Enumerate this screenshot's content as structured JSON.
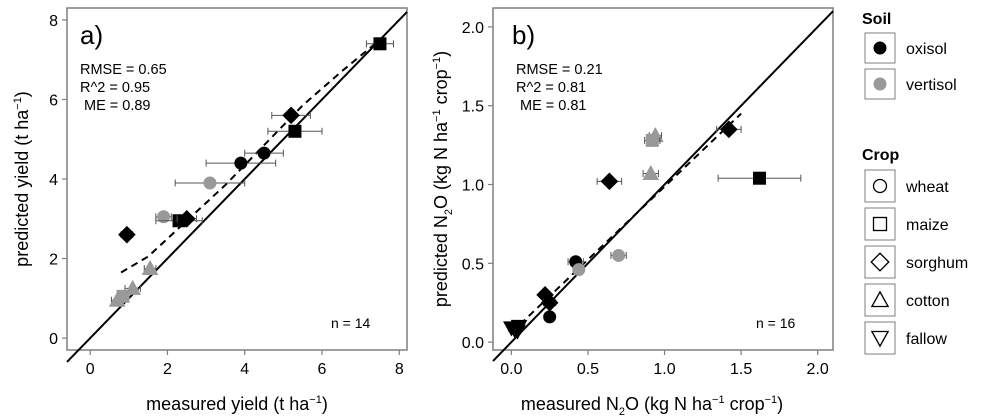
{
  "chart_data": [
    {
      "type": "scatter",
      "panel_label": "a)",
      "xlabel": {
        "main": "measured yield (t ha",
        "sup": "−1",
        "tail": ")"
      },
      "ylabel": {
        "main": "predicted yield (t ha",
        "sup": "−1",
        "tail": ")"
      },
      "xlim": [
        -0.6,
        8.2
      ],
      "ylim": [
        -0.3,
        8.3
      ],
      "xticks": [
        0,
        2,
        4,
        6,
        8
      ],
      "yticks": [
        0,
        2,
        4,
        6,
        8
      ],
      "xtick_labels": [
        "0",
        "2",
        "4",
        "6",
        "8"
      ],
      "ytick_labels": [
        "0",
        "2",
        "4",
        "6",
        "8"
      ],
      "stats": [
        "RMSE = 0.65",
        "R^2 = 0.95",
        "ME = 0.89"
      ],
      "n_label": "n = 14",
      "one_to_one": [
        [
          -0.6,
          -0.6
        ],
        [
          8.2,
          8.2
        ]
      ],
      "fit_line": [
        [
          0.8,
          1.65
        ],
        [
          1.5,
          2.05
        ],
        [
          2.5,
          2.95
        ],
        [
          3.5,
          3.85
        ],
        [
          4.5,
          4.85
        ],
        [
          5.5,
          5.85
        ],
        [
          6.5,
          6.7
        ],
        [
          7.5,
          7.5
        ]
      ],
      "points": [
        {
          "x": 7.5,
          "y": 7.4,
          "xerr": 0.35,
          "soil": "oxisol",
          "crop": "maize"
        },
        {
          "x": 5.2,
          "y": 5.6,
          "xerr": 0.5,
          "soil": "oxisol",
          "crop": "sorghum"
        },
        {
          "x": 5.3,
          "y": 5.2,
          "xerr": 0.7,
          "soil": "oxisol",
          "crop": "maize"
        },
        {
          "x": 4.5,
          "y": 4.65,
          "xerr": 0.5,
          "soil": "oxisol",
          "crop": "wheat"
        },
        {
          "x": 3.9,
          "y": 4.4,
          "xerr": 0.9,
          "soil": "oxisol",
          "crop": "wheat"
        },
        {
          "x": 3.1,
          "y": 3.9,
          "xerr": 0.9,
          "soil": "vertisol",
          "crop": "wheat"
        },
        {
          "x": 1.9,
          "y": 3.05,
          "xerr": 0.2,
          "soil": "vertisol",
          "crop": "wheat"
        },
        {
          "x": 2.3,
          "y": 2.95,
          "xerr": 0.6,
          "soil": "oxisol",
          "crop": "maize"
        },
        {
          "x": 2.5,
          "y": 3.0,
          "xerr": 0.25,
          "soil": "oxisol",
          "crop": "sorghum"
        },
        {
          "x": 0.95,
          "y": 2.6,
          "xerr": 0.15,
          "soil": "oxisol",
          "crop": "sorghum"
        },
        {
          "x": 1.55,
          "y": 1.75,
          "xerr": 0.15,
          "soil": "vertisol",
          "crop": "cotton"
        },
        {
          "x": 1.1,
          "y": 1.25,
          "xerr": 0.2,
          "soil": "vertisol",
          "crop": "cotton"
        },
        {
          "x": 0.7,
          "y": 0.95,
          "xerr": 0.15,
          "soil": "vertisol",
          "crop": "cotton"
        },
        {
          "x": 0.85,
          "y": 1.05,
          "xerr": 0.1,
          "soil": "vertisol",
          "crop": "maize"
        }
      ]
    },
    {
      "type": "scatter",
      "panel_label": "b)",
      "xlabel": {
        "main": "measured N",
        "sub": "2",
        "mid": "O (kg N ha",
        "sup": "−1",
        "tail": " crop",
        "sup2": "−1",
        "tail2": ")"
      },
      "ylabel": {
        "main": "predicted N",
        "sub": "2",
        "mid": "O (kg N ha",
        "sup": "−1",
        "tail": " crop",
        "sup2": "−1",
        "tail2": ")"
      },
      "xlim": [
        -0.12,
        2.1
      ],
      "ylim": [
        -0.05,
        2.12
      ],
      "xticks": [
        0.0,
        0.5,
        1.0,
        1.5,
        2.0
      ],
      "yticks": [
        0.0,
        0.5,
        1.0,
        1.5,
        2.0
      ],
      "xtick_labels": [
        "0.0",
        "0.5",
        "1.0",
        "1.5",
        "2.0"
      ],
      "ytick_labels": [
        "0.0",
        "0.5",
        "1.0",
        "1.5",
        "2.0"
      ],
      "stats": [
        "RMSE = 0.21",
        "R^2 = 0.81",
        "ME = 0.81"
      ],
      "n_label": "n = 16",
      "one_to_one": [
        [
          -0.12,
          -0.12
        ],
        [
          2.1,
          2.1
        ]
      ],
      "fit_line": [
        [
          0.0,
          0.06
        ],
        [
          1.5,
          1.45
        ]
      ],
      "points": [
        {
          "x": 1.42,
          "y": 1.35,
          "xerr": 0.08,
          "soil": "oxisol",
          "crop": "sorghum"
        },
        {
          "x": 0.94,
          "y": 1.31,
          "xerr": 0.04,
          "soil": "vertisol",
          "crop": "cotton"
        },
        {
          "x": 0.92,
          "y": 1.28,
          "xerr": 0.05,
          "soil": "vertisol",
          "crop": "maize"
        },
        {
          "x": 0.91,
          "y": 1.07,
          "xerr": 0.05,
          "soil": "vertisol",
          "crop": "cotton"
        },
        {
          "x": 0.64,
          "y": 1.02,
          "xerr": 0.08,
          "soil": "oxisol",
          "crop": "sorghum"
        },
        {
          "x": 1.62,
          "y": 1.04,
          "xerr": 0.27,
          "soil": "oxisol",
          "crop": "maize"
        },
        {
          "x": 0.7,
          "y": 0.55,
          "xerr": 0.05,
          "soil": "vertisol",
          "crop": "wheat"
        },
        {
          "x": 0.42,
          "y": 0.51,
          "xerr": 0.05,
          "soil": "oxisol",
          "crop": "wheat"
        },
        {
          "x": 0.44,
          "y": 0.46,
          "xerr": 0.03,
          "soil": "vertisol",
          "crop": "wheat"
        },
        {
          "x": 0.22,
          "y": 0.3,
          "xerr": 0.03,
          "soil": "oxisol",
          "crop": "sorghum"
        },
        {
          "x": 0.25,
          "y": 0.25,
          "xerr": 0.04,
          "soil": "oxisol",
          "crop": "sorghum"
        },
        {
          "x": 0.25,
          "y": 0.16,
          "xerr": 0.03,
          "soil": "oxisol",
          "crop": "wheat"
        },
        {
          "x": 0.02,
          "y": 0.08,
          "xerr": 0.02,
          "soil": "oxisol",
          "crop": "fallow"
        },
        {
          "x": 0.04,
          "y": 0.07,
          "xerr": 0.02,
          "soil": "oxisol",
          "crop": "fallow"
        },
        {
          "x": 0.0,
          "y": 0.09,
          "xerr": 0.02,
          "soil": "oxisol",
          "crop": "fallow"
        },
        {
          "x": 0.05,
          "y": 0.1,
          "xerr": 0.02,
          "soil": "oxisol",
          "crop": "fallow"
        }
      ]
    }
  ],
  "legend": {
    "soil_title": "Soil",
    "soil": [
      {
        "key": "oxisol",
        "label": "oxisol",
        "color": "#000000"
      },
      {
        "key": "vertisol",
        "label": "vertisol",
        "color": "#999999"
      }
    ],
    "crop_title": "Crop",
    "crop": [
      {
        "key": "wheat",
        "label": "wheat",
        "shape": "circle"
      },
      {
        "key": "maize",
        "label": "maize",
        "shape": "square"
      },
      {
        "key": "sorghum",
        "label": "sorghum",
        "shape": "diamond"
      },
      {
        "key": "cotton",
        "label": "cotton",
        "shape": "triangle"
      },
      {
        "key": "fallow",
        "label": "fallow",
        "shape": "triangle-down"
      }
    ]
  },
  "colors": {
    "oxisol": "#000000",
    "vertisol": "#999999",
    "errorbar": "#555555",
    "panel_border": "#7f7f7f"
  }
}
